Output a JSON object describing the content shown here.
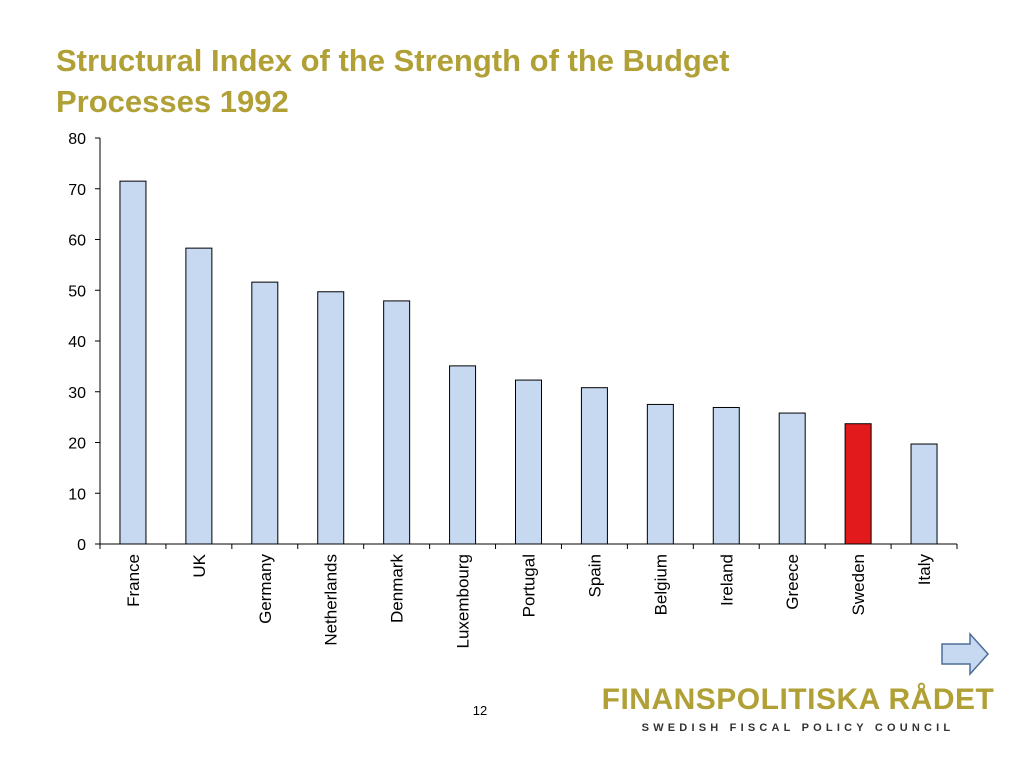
{
  "slide": {
    "title_line1": "Structural Index of the Strength of the Budget",
    "title_line2": "Processes 1992",
    "page_number": "12"
  },
  "logo": {
    "main": "FINANSPOLITISKA RÅDET",
    "sub": "SWEDISH FISCAL POLICY COUNCIL"
  },
  "colors": {
    "title": "#b0a036",
    "bar_default": "#c6d9f1",
    "bar_highlight": "#e31a1c",
    "bar_stroke": "#000000",
    "axis": "#000000"
  },
  "chart_data": {
    "type": "bar",
    "title": "Structural Index of the Strength of the Budget Processes 1992",
    "xlabel": "",
    "ylabel": "",
    "ylim": [
      0,
      80
    ],
    "yticks": [
      0,
      10,
      20,
      30,
      40,
      50,
      60,
      70,
      80
    ],
    "grid": false,
    "categories": [
      "France",
      "UK",
      "Germany",
      "Netherlands",
      "Denmark",
      "Luxembourg",
      "Portugal",
      "Spain",
      "Belgium",
      "Ireland",
      "Greece",
      "Sweden",
      "Italy"
    ],
    "values": [
      71.5,
      58.3,
      51.6,
      49.7,
      47.9,
      35.1,
      32.3,
      30.8,
      27.5,
      26.9,
      25.8,
      23.7,
      19.7
    ],
    "highlight": [
      "Sweden"
    ]
  }
}
